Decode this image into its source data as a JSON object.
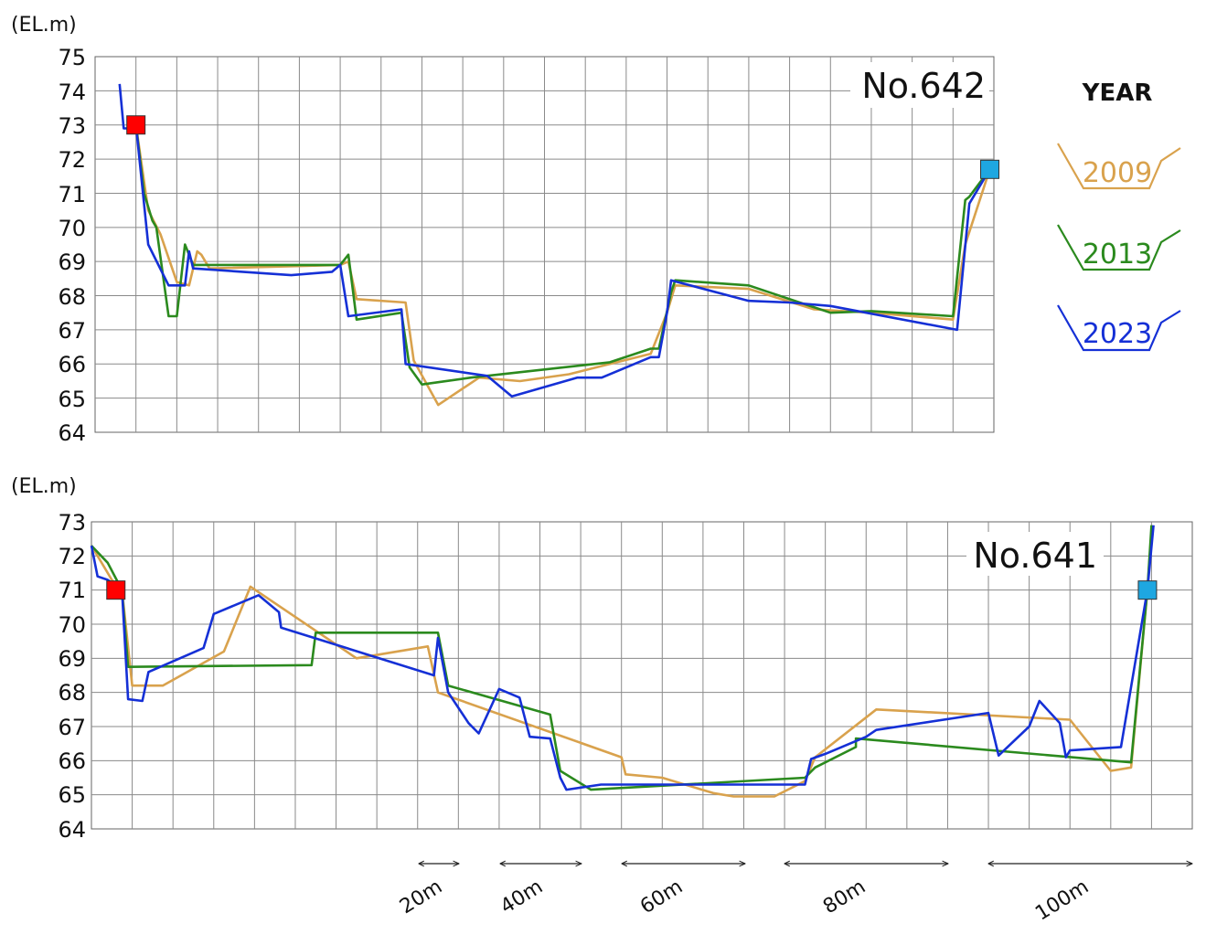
{
  "chart_data": [
    {
      "type": "line",
      "title": "No.642",
      "ylabel": "(EL.m)",
      "ylim": [
        64,
        75
      ],
      "yticks": [
        "64",
        "65",
        "66",
        "67",
        "68",
        "69",
        "70",
        "71",
        "72",
        "73",
        "74",
        "75"
      ],
      "legend_title": "YEAR",
      "grid": true,
      "markers": [
        {
          "shape": "square",
          "color": "#ff0000",
          "x": 5.0,
          "y": 73.0
        },
        {
          "shape": "square",
          "color": "#1ea7e1",
          "x": 109.5,
          "y": 71.7
        }
      ],
      "series": [
        {
          "name": "2009",
          "color": "#d9a24d",
          "points": [
            [
              5.0,
              73.0
            ],
            [
              6.5,
              70.5
            ],
            [
              8.0,
              69.8
            ],
            [
              10.0,
              68.4
            ],
            [
              11.5,
              68.3
            ],
            [
              12.5,
              69.3
            ],
            [
              13.0,
              69.2
            ],
            [
              14.0,
              68.8
            ],
            [
              30.0,
              68.9
            ],
            [
              31.0,
              69.0
            ],
            [
              32.0,
              67.9
            ],
            [
              38.0,
              67.8
            ],
            [
              39.0,
              66.1
            ],
            [
              42.0,
              64.8
            ],
            [
              47.0,
              65.6
            ],
            [
              52.0,
              65.5
            ],
            [
              58.0,
              65.7
            ],
            [
              63.0,
              66.0
            ],
            [
              68.0,
              66.3
            ],
            [
              70.0,
              67.5
            ],
            [
              71.0,
              68.3
            ],
            [
              80.0,
              68.2
            ],
            [
              88.0,
              67.6
            ],
            [
              95.0,
              67.5
            ],
            [
              105.0,
              67.3
            ],
            [
              106.5,
              69.5
            ],
            [
              109.5,
              71.7
            ]
          ]
        },
        {
          "name": "2013",
          "color": "#2b8a1e",
          "points": [
            [
              5.0,
              73.0
            ],
            [
              6.0,
              71.0
            ],
            [
              7.0,
              70.2
            ],
            [
              7.5,
              70.0
            ],
            [
              9.0,
              67.4
            ],
            [
              10.0,
              67.4
            ],
            [
              11.0,
              69.5
            ],
            [
              12.0,
              68.9
            ],
            [
              30.0,
              68.9
            ],
            [
              31.0,
              69.2
            ],
            [
              32.0,
              67.3
            ],
            [
              37.5,
              67.5
            ],
            [
              38.5,
              65.9
            ],
            [
              40.0,
              65.4
            ],
            [
              46.0,
              65.6
            ],
            [
              63.0,
              66.05
            ],
            [
              68.0,
              66.45
            ],
            [
              69.0,
              66.45
            ],
            [
              70.5,
              68.1
            ],
            [
              71.0,
              68.45
            ],
            [
              80.0,
              68.3
            ],
            [
              90.0,
              67.5
            ],
            [
              95.0,
              67.55
            ],
            [
              105.0,
              67.4
            ],
            [
              106.5,
              70.8
            ],
            [
              107.0,
              70.9
            ],
            [
              109.5,
              71.7
            ]
          ]
        },
        {
          "name": "2023",
          "color": "#1530d6",
          "points": [
            [
              3.0,
              74.2
            ],
            [
              3.5,
              72.9
            ],
            [
              4.5,
              72.9
            ],
            [
              5.0,
              73.0
            ],
            [
              6.5,
              69.5
            ],
            [
              9.0,
              68.3
            ],
            [
              11.0,
              68.3
            ],
            [
              11.5,
              69.3
            ],
            [
              12.0,
              68.8
            ],
            [
              24.0,
              68.6
            ],
            [
              29.0,
              68.7
            ],
            [
              30.0,
              68.9
            ],
            [
              31.0,
              67.4
            ],
            [
              37.5,
              67.6
            ],
            [
              38.0,
              66.0
            ],
            [
              48.0,
              65.65
            ],
            [
              51.0,
              65.05
            ],
            [
              59.0,
              65.6
            ],
            [
              62.0,
              65.6
            ],
            [
              68.0,
              66.2
            ],
            [
              69.0,
              66.2
            ],
            [
              70.0,
              67.5
            ],
            [
              70.5,
              68.45
            ],
            [
              80.0,
              67.85
            ],
            [
              85.0,
              67.8
            ],
            [
              90.0,
              67.7
            ],
            [
              105.5,
              67.0
            ],
            [
              107.0,
              70.7
            ],
            [
              109.5,
              71.7
            ]
          ]
        }
      ]
    },
    {
      "type": "line",
      "title": "No.641",
      "ylabel": "(EL.m)",
      "ylim": [
        64,
        73
      ],
      "yticks": [
        "64",
        "65",
        "66",
        "67",
        "68",
        "69",
        "70",
        "71",
        "72",
        "73"
      ],
      "grid": true,
      "markers": [
        {
          "shape": "square",
          "color": "#ff0000",
          "x": 1.2,
          "y": 71.0
        },
        {
          "shape": "square",
          "color": "#1ea7e1",
          "x": 51.8,
          "y": 71.0
        }
      ],
      "series": [
        {
          "name": "2009",
          "color": "#d9a24d",
          "points": [
            [
              0.0,
              72.3
            ],
            [
              1.0,
              71.3
            ],
            [
              1.5,
              71.0
            ],
            [
              2.0,
              68.2
            ],
            [
              3.5,
              68.2
            ],
            [
              6.5,
              69.2
            ],
            [
              7.8,
              71.1
            ],
            [
              13.0,
              69.0
            ],
            [
              16.5,
              69.35
            ],
            [
              17.0,
              68.0
            ],
            [
              26.0,
              66.1
            ],
            [
              26.2,
              65.6
            ],
            [
              28.0,
              65.5
            ],
            [
              30.5,
              65.05
            ],
            [
              31.5,
              64.95
            ],
            [
              33.5,
              64.95
            ],
            [
              35.0,
              65.4
            ],
            [
              35.5,
              66.1
            ],
            [
              38.5,
              67.5
            ],
            [
              48.0,
              67.2
            ],
            [
              50.0,
              65.7
            ],
            [
              51.0,
              65.8
            ],
            [
              51.8,
              71.0
            ],
            [
              52.0,
              72.7
            ]
          ]
        },
        {
          "name": "2013",
          "color": "#2b8a1e",
          "points": [
            [
              0.0,
              72.3
            ],
            [
              0.8,
              71.8
            ],
            [
              1.5,
              71.0
            ],
            [
              1.8,
              68.75
            ],
            [
              10.8,
              68.8
            ],
            [
              11.0,
              69.75
            ],
            [
              17.0,
              69.75
            ],
            [
              17.5,
              68.2
            ],
            [
              22.5,
              67.35
            ],
            [
              23.0,
              65.7
            ],
            [
              24.5,
              65.15
            ],
            [
              35.0,
              65.5
            ],
            [
              35.5,
              65.8
            ],
            [
              37.5,
              66.4
            ],
            [
              37.5,
              66.65
            ],
            [
              51.0,
              65.95
            ],
            [
              51.8,
              71.0
            ],
            [
              52.0,
              72.9
            ]
          ]
        },
        {
          "name": "2023",
          "color": "#1530d6",
          "points": [
            [
              0.0,
              72.3
            ],
            [
              0.3,
              71.4
            ],
            [
              0.8,
              71.3
            ],
            [
              1.5,
              71.0
            ],
            [
              1.8,
              67.8
            ],
            [
              2.5,
              67.75
            ],
            [
              2.8,
              68.6
            ],
            [
              5.5,
              69.3
            ],
            [
              6.0,
              70.3
            ],
            [
              8.2,
              70.85
            ],
            [
              9.2,
              70.35
            ],
            [
              9.3,
              69.9
            ],
            [
              16.8,
              68.5
            ],
            [
              17.0,
              69.6
            ],
            [
              17.5,
              68.0
            ],
            [
              18.5,
              67.1
            ],
            [
              19.0,
              66.8
            ],
            [
              20.0,
              68.1
            ],
            [
              21.0,
              67.85
            ],
            [
              21.5,
              66.7
            ],
            [
              22.5,
              66.65
            ],
            [
              23.0,
              65.5
            ],
            [
              23.3,
              65.15
            ],
            [
              25.0,
              65.3
            ],
            [
              34.0,
              65.3
            ],
            [
              35.0,
              65.3
            ],
            [
              35.3,
              66.05
            ],
            [
              36.0,
              66.2
            ],
            [
              38.0,
              66.7
            ],
            [
              38.5,
              66.9
            ],
            [
              44.0,
              67.4
            ],
            [
              44.5,
              66.15
            ],
            [
              46.0,
              67.0
            ],
            [
              46.5,
              67.75
            ],
            [
              47.5,
              67.1
            ],
            [
              47.8,
              66.1
            ],
            [
              48.0,
              66.3
            ],
            [
              50.5,
              66.4
            ],
            [
              51.8,
              71.0
            ],
            [
              52.1,
              72.9
            ]
          ]
        }
      ]
    }
  ],
  "legend": [
    {
      "name": "2009",
      "color": "#d9a24d"
    },
    {
      "name": "2013",
      "color": "#2b8a1e"
    },
    {
      "name": "2023",
      "color": "#1530d6"
    }
  ],
  "scale_bars": [
    {
      "label": "20m"
    },
    {
      "label": "40m"
    },
    {
      "label": "60m"
    },
    {
      "label": "80m"
    },
    {
      "label": "100m"
    }
  ]
}
